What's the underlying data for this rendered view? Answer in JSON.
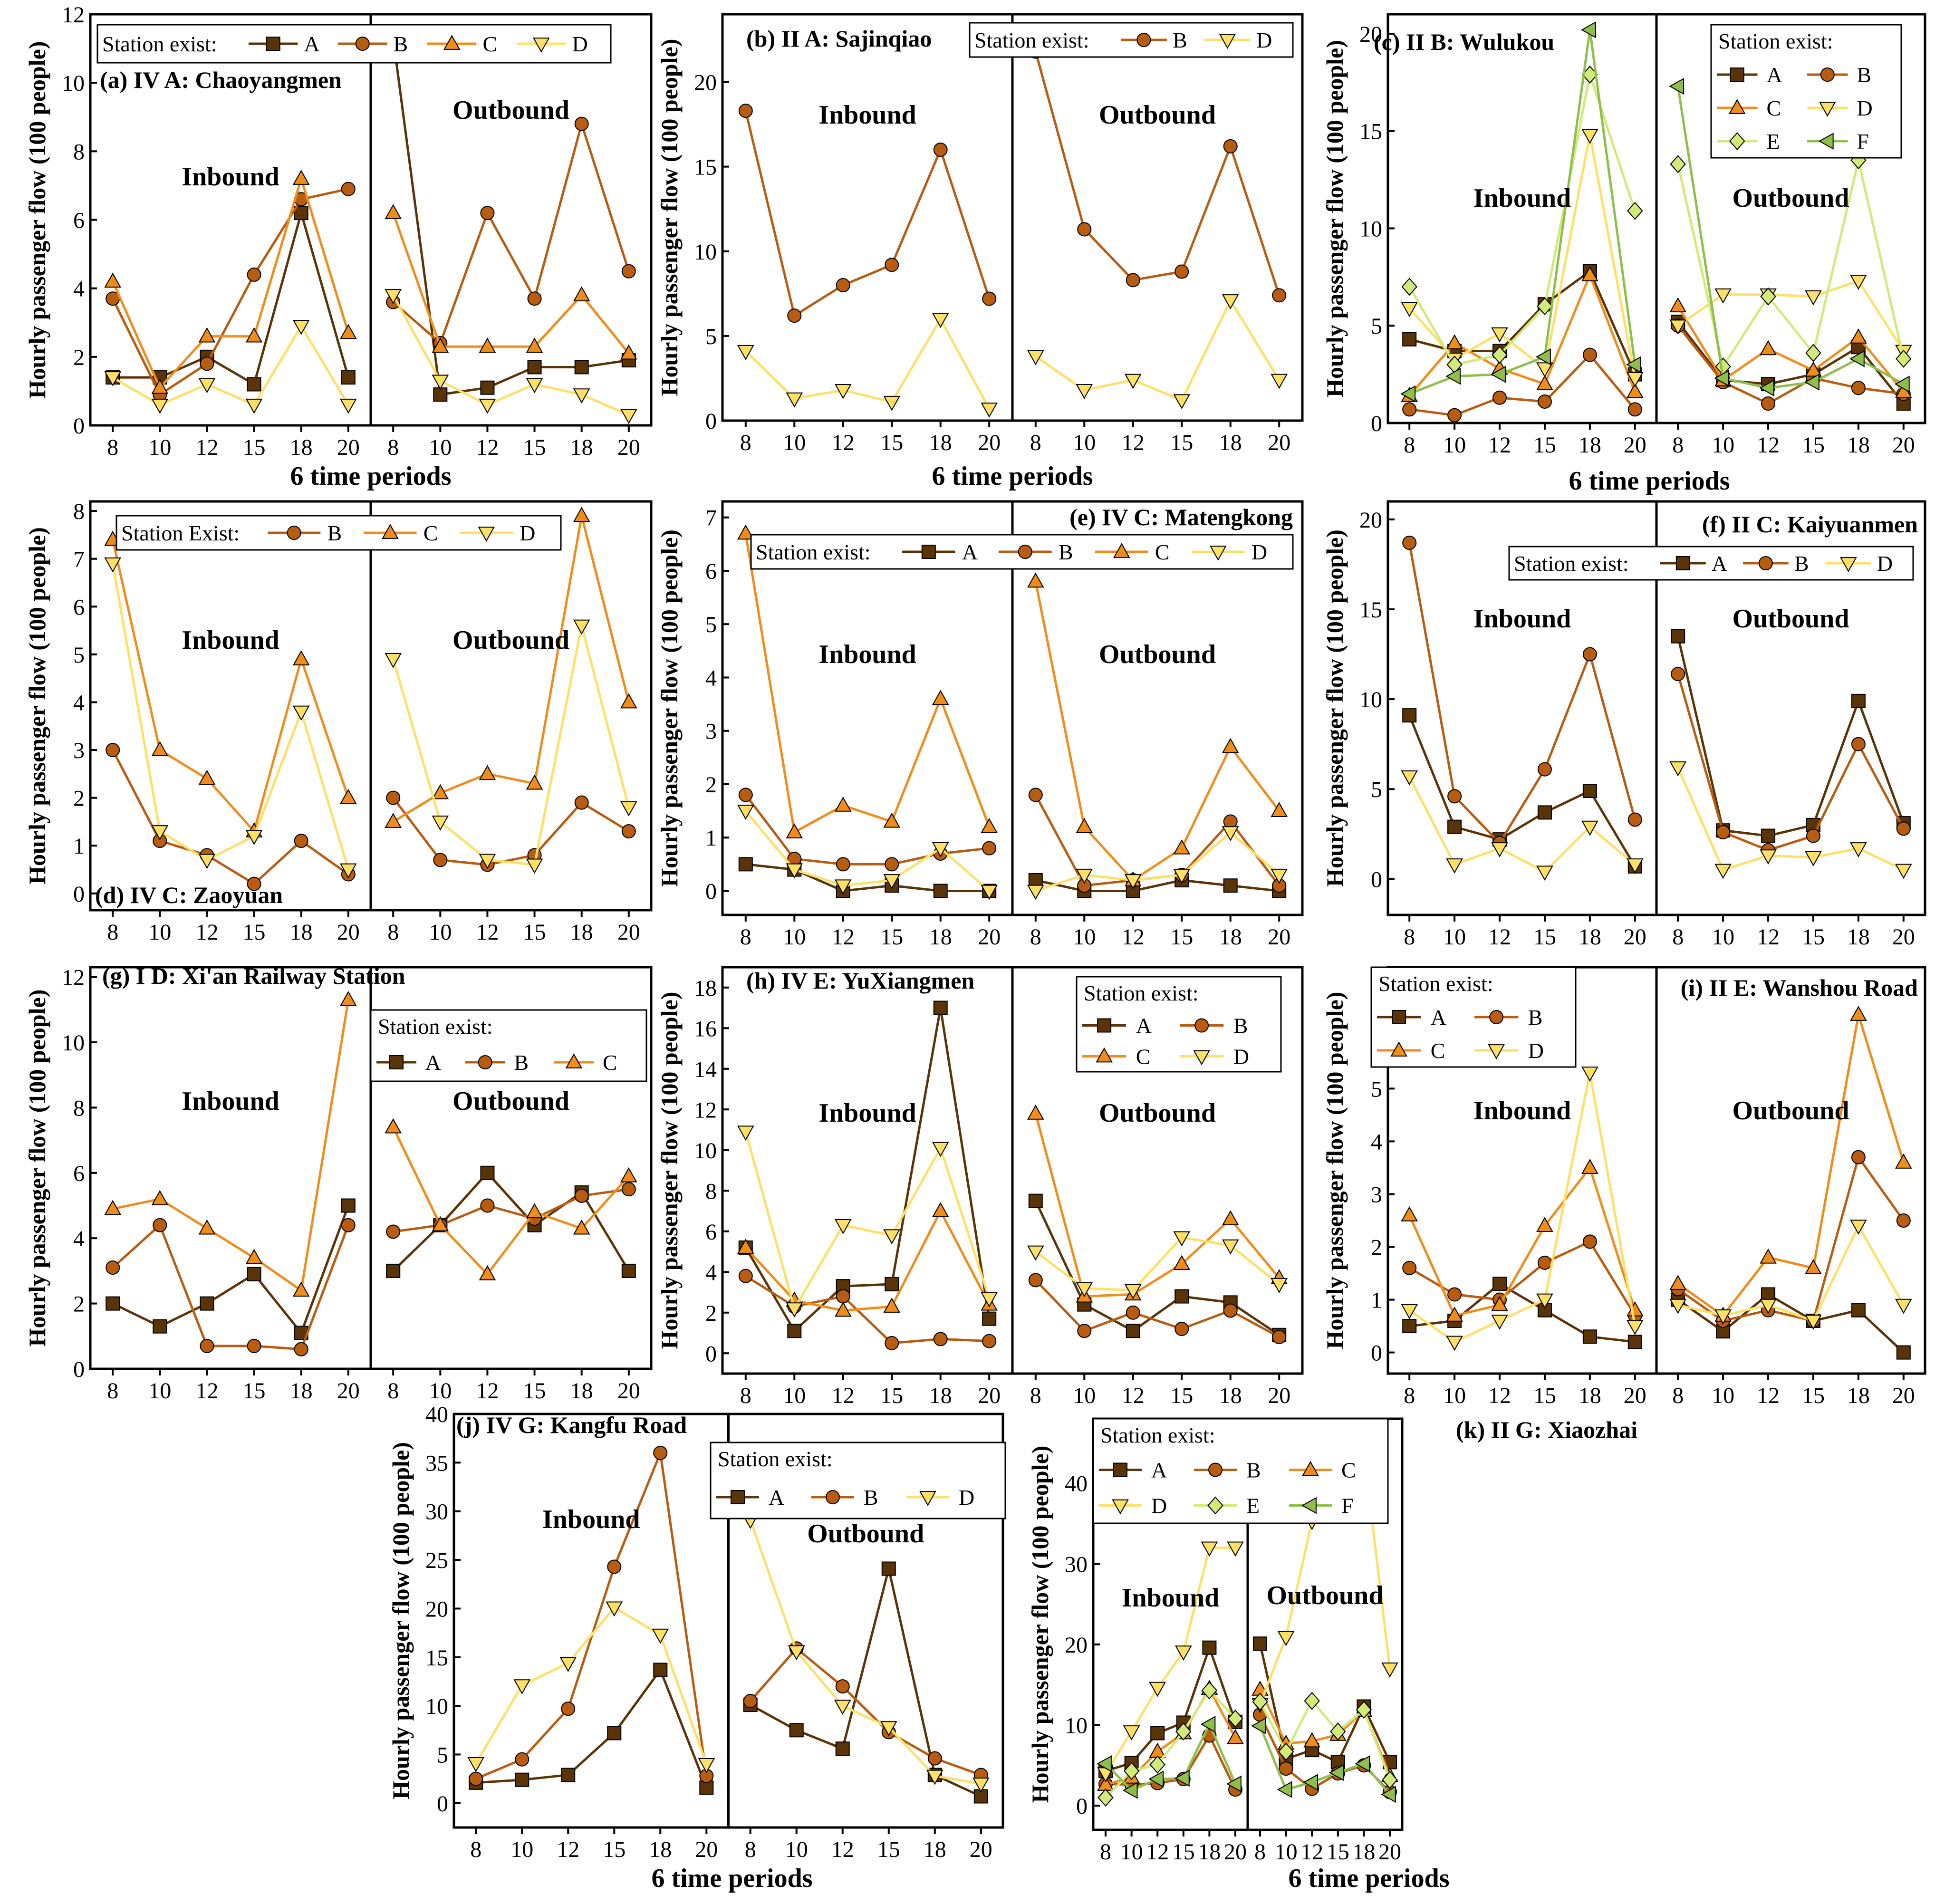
{
  "figure": {
    "xlabel": "6 time periods",
    "ylabel": "Hourly passenger flow (100 people)",
    "inbound_label": "Inbound",
    "outbound_label": "Outbound"
  },
  "colors": {
    "A": "#5a3307",
    "B": "#b85c12",
    "C": "#f08c1a",
    "D": "#ffe066",
    "E": "#d2ea7a",
    "F": "#8fbf4a"
  },
  "markers": {
    "A": "square",
    "B": "circle",
    "C": "triangle-up",
    "D": "triangle-down",
    "E": "diamond",
    "F": "triangle-left"
  },
  "chart_data": [
    {
      "id": "a",
      "type": "line",
      "title": "(a) IV A: Chaoyangmen",
      "legend_title": "Station exist:",
      "categories": [
        "8",
        "10",
        "12",
        "15",
        "18",
        "20"
      ],
      "ylim": [
        0,
        12
      ],
      "yticks": [
        0,
        2,
        4,
        6,
        8,
        10,
        12
      ],
      "series": [
        {
          "name": "A",
          "inbound": [
            1.4,
            1.4,
            2.0,
            1.2,
            6.2,
            1.4
          ],
          "outbound": [
            11.3,
            0.9,
            1.1,
            1.7,
            1.7,
            1.9
          ]
        },
        {
          "name": "B",
          "inbound": [
            3.7,
            0.9,
            1.8,
            4.4,
            6.6,
            6.9
          ],
          "outbound": [
            3.6,
            2.4,
            6.2,
            3.7,
            8.8,
            4.5
          ]
        },
        {
          "name": "C",
          "inbound": [
            4.2,
            1.1,
            2.6,
            2.6,
            7.2,
            2.7
          ],
          "outbound": [
            6.2,
            2.3,
            2.3,
            2.3,
            3.8,
            2.1
          ]
        },
        {
          "name": "D",
          "inbound": [
            1.4,
            0.6,
            1.2,
            0.6,
            2.9,
            0.6
          ],
          "outbound": [
            3.8,
            1.3,
            0.6,
            1.2,
            0.9,
            0.3
          ]
        }
      ]
    },
    {
      "id": "b",
      "type": "line",
      "title": "(b) II A: Sajinqiao",
      "legend_title": "Station exist:",
      "categories": [
        "8",
        "10",
        "12",
        "15",
        "18",
        "20"
      ],
      "ylim": [
        0,
        24
      ],
      "yticks": [
        0,
        5,
        10,
        15,
        20
      ],
      "series": [
        {
          "name": "B",
          "inbound": [
            18.3,
            6.2,
            8.0,
            9.2,
            16.0,
            7.2
          ],
          "outbound": [
            21.8,
            11.3,
            8.3,
            8.8,
            16.2,
            7.4
          ]
        },
        {
          "name": "D",
          "inbound": [
            4.1,
            1.3,
            1.8,
            1.1,
            6.0,
            0.7
          ],
          "outbound": [
            3.8,
            1.8,
            2.4,
            1.2,
            7.1,
            2.4
          ]
        }
      ]
    },
    {
      "id": "c",
      "type": "line",
      "title": "(c) II B: Wulukou",
      "legend_title": "Station exist:",
      "categories": [
        "8",
        "10",
        "12",
        "15",
        "18",
        "20"
      ],
      "ylim": [
        0,
        21
      ],
      "yticks": [
        0,
        5,
        10,
        15,
        20
      ],
      "series": [
        {
          "name": "A",
          "inbound": [
            4.3,
            3.7,
            3.7,
            6.1,
            7.8,
            2.5
          ],
          "outbound": [
            5.2,
            2.2,
            2.0,
            2.5,
            3.9,
            1.0
          ]
        },
        {
          "name": "B",
          "inbound": [
            0.7,
            0.4,
            1.3,
            1.1,
            3.5,
            0.7
          ],
          "outbound": [
            5.0,
            2.1,
            1.0,
            2.3,
            1.8,
            1.5
          ]
        },
        {
          "name": "C",
          "inbound": [
            1.4,
            4.1,
            2.8,
            2.0,
            7.6,
            1.6
          ],
          "outbound": [
            6.0,
            2.2,
            3.8,
            2.7,
            4.4,
            1.6
          ]
        },
        {
          "name": "D",
          "inbound": [
            5.9,
            3.3,
            4.6,
            2.8,
            14.8,
            2.3
          ],
          "outbound": [
            5.0,
            6.6,
            6.6,
            6.5,
            7.3,
            3.7
          ]
        },
        {
          "name": "E",
          "inbound": [
            7.0,
            3.0,
            3.5,
            6.0,
            17.9,
            10.9
          ],
          "outbound": [
            13.3,
            2.9,
            6.5,
            3.6,
            13.5,
            3.3
          ]
        },
        {
          "name": "F",
          "inbound": [
            1.5,
            2.4,
            2.5,
            3.4,
            20.2,
            3.0
          ],
          "outbound": [
            17.3,
            2.3,
            1.8,
            2.1,
            3.3,
            2.0
          ]
        }
      ]
    },
    {
      "id": "d",
      "type": "line",
      "title": "(d) IV C: Zaoyuan",
      "legend_title": "Station Exist:",
      "categories": [
        "8",
        "10",
        "12",
        "15",
        "18",
        "20"
      ],
      "ylim": [
        -0.35,
        8.2
      ],
      "yticks": [
        0,
        1,
        2,
        3,
        4,
        5,
        6,
        7,
        8
      ],
      "series": [
        {
          "name": "B",
          "inbound": [
            3.0,
            1.1,
            0.8,
            0.2,
            1.1,
            0.4
          ],
          "outbound": [
            2.0,
            0.7,
            0.6,
            0.8,
            1.9,
            1.3
          ]
        },
        {
          "name": "C",
          "inbound": [
            7.4,
            3.0,
            2.4,
            1.3,
            4.9,
            2.0
          ],
          "outbound": [
            1.5,
            2.1,
            2.5,
            2.3,
            7.9,
            4.0
          ]
        },
        {
          "name": "D",
          "inbound": [
            6.9,
            1.3,
            0.7,
            1.2,
            3.8,
            0.5
          ],
          "outbound": [
            4.9,
            1.5,
            0.7,
            0.6,
            5.6,
            1.8
          ]
        }
      ]
    },
    {
      "id": "e",
      "type": "line",
      "title": "(e) IV C: Matengkong",
      "legend_title": "Station exist:",
      "categories": [
        "8",
        "10",
        "12",
        "15",
        "18",
        "20"
      ],
      "ylim": [
        -0.45,
        7.3
      ],
      "yticks": [
        0,
        1,
        2,
        3,
        4,
        5,
        6,
        7
      ],
      "series": [
        {
          "name": "A",
          "inbound": [
            0.5,
            0.4,
            0.0,
            0.1,
            0.0,
            0.0
          ],
          "outbound": [
            0.2,
            0.0,
            0.0,
            0.2,
            0.1,
            0.0
          ]
        },
        {
          "name": "B",
          "inbound": [
            1.8,
            0.6,
            0.5,
            0.5,
            0.7,
            0.8
          ],
          "outbound": [
            1.8,
            0.1,
            0.2,
            0.3,
            1.3,
            0.1
          ]
        },
        {
          "name": "C",
          "inbound": [
            6.7,
            1.1,
            1.6,
            1.3,
            3.6,
            1.2
          ],
          "outbound": [
            5.8,
            1.2,
            0.2,
            0.8,
            2.7,
            1.5
          ]
        },
        {
          "name": "D",
          "inbound": [
            1.5,
            0.4,
            0.1,
            0.2,
            0.8,
            0.0
          ],
          "outbound": [
            0.0,
            0.3,
            0.2,
            0.3,
            1.1,
            0.3
          ]
        }
      ]
    },
    {
      "id": "f",
      "type": "line",
      "title": "(f) II C: Kaiyuanmen",
      "legend_title": "Station exist:",
      "categories": [
        "8",
        "10",
        "12",
        "15",
        "18",
        "20"
      ],
      "ylim": [
        -2,
        21
      ],
      "yticks": [
        0,
        5,
        10,
        15,
        20
      ],
      "series": [
        {
          "name": "A",
          "inbound": [
            9.1,
            2.9,
            2.2,
            3.7,
            4.9,
            0.7
          ],
          "outbound": [
            13.5,
            2.7,
            2.4,
            3.0,
            9.9,
            3.1
          ]
        },
        {
          "name": "B",
          "inbound": [
            18.7,
            4.6,
            2.0,
            6.1,
            12.5,
            3.3
          ],
          "outbound": [
            11.4,
            2.6,
            1.6,
            2.4,
            7.5,
            2.8
          ]
        },
        {
          "name": "D",
          "inbound": [
            5.7,
            0.8,
            1.7,
            0.4,
            2.9,
            0.8
          ],
          "outbound": [
            6.2,
            0.5,
            1.3,
            1.2,
            1.7,
            0.5
          ]
        }
      ]
    },
    {
      "id": "g",
      "type": "line",
      "title": "(g) I D: Xi'an Railway Station",
      "legend_title": "Station exist:",
      "categories": [
        "8",
        "10",
        "12",
        "15",
        "18",
        "20"
      ],
      "ylim": [
        0,
        12.3
      ],
      "yticks": [
        0,
        2,
        4,
        6,
        8,
        10,
        12
      ],
      "series": [
        {
          "name": "A",
          "inbound": [
            2.0,
            1.3,
            2.0,
            2.9,
            1.1,
            5.0
          ],
          "outbound": [
            3.0,
            4.4,
            6.0,
            4.4,
            5.4,
            3.0
          ]
        },
        {
          "name": "B",
          "inbound": [
            3.1,
            4.4,
            0.7,
            0.7,
            0.6,
            4.4
          ],
          "outbound": [
            4.2,
            4.4,
            5.0,
            4.6,
            5.3,
            5.5
          ]
        },
        {
          "name": "C",
          "inbound": [
            4.9,
            5.2,
            4.3,
            3.4,
            2.4,
            11.3
          ],
          "outbound": [
            7.4,
            4.4,
            2.9,
            4.8,
            4.3,
            5.9
          ]
        }
      ]
    },
    {
      "id": "h",
      "type": "line",
      "title": "(h) IV E: YuXiangmen",
      "legend_title": "Station exist:",
      "categories": [
        "8",
        "10",
        "12",
        "15",
        "18",
        "20"
      ],
      "ylim": [
        -1,
        19
      ],
      "yticks": [
        0,
        2,
        4,
        6,
        8,
        10,
        12,
        14,
        16,
        18
      ],
      "series": [
        {
          "name": "A",
          "inbound": [
            5.2,
            1.1,
            3.3,
            3.4,
            17.0,
            1.7
          ],
          "outbound": [
            7.5,
            2.4,
            1.1,
            2.8,
            2.5,
            0.9
          ]
        },
        {
          "name": "B",
          "inbound": [
            3.8,
            2.3,
            2.8,
            0.5,
            0.7,
            0.6
          ],
          "outbound": [
            3.6,
            1.1,
            2.0,
            1.2,
            2.1,
            0.8
          ]
        },
        {
          "name": "C",
          "inbound": [
            5.2,
            2.6,
            2.1,
            2.3,
            7.0,
            2.4
          ],
          "outbound": [
            11.8,
            2.8,
            2.9,
            4.4,
            6.6,
            3.7
          ]
        },
        {
          "name": "D",
          "inbound": [
            10.9,
            2.2,
            6.3,
            5.8,
            10.1,
            2.7
          ],
          "outbound": [
            5.0,
            3.2,
            3.1,
            5.7,
            5.3,
            3.4
          ]
        }
      ]
    },
    {
      "id": "i",
      "type": "line",
      "title": "(i) II E: Wanshou Road",
      "legend_title": "Station exist:",
      "categories": [
        "8",
        "10",
        "12",
        "15",
        "18",
        "20"
      ],
      "ylim": [
        -0.4,
        7.3
      ],
      "yticks": [
        0,
        1,
        2,
        3,
        4,
        5,
        6,
        7
      ],
      "series": [
        {
          "name": "A",
          "inbound": [
            0.5,
            0.6,
            1.3,
            0.8,
            0.3,
            0.2
          ],
          "outbound": [
            1.0,
            0.4,
            1.1,
            0.6,
            0.8,
            0.0
          ]
        },
        {
          "name": "B",
          "inbound": [
            1.6,
            1.1,
            1.0,
            1.7,
            2.1,
            0.7
          ],
          "outbound": [
            1.2,
            0.6,
            0.8,
            0.6,
            3.7,
            2.5
          ]
        },
        {
          "name": "C",
          "inbound": [
            2.6,
            0.7,
            0.9,
            2.4,
            3.5,
            0.8
          ],
          "outbound": [
            1.3,
            0.7,
            1.8,
            1.6,
            6.4,
            3.6
          ]
        },
        {
          "name": "D",
          "inbound": [
            0.8,
            0.2,
            0.6,
            1.0,
            5.3,
            0.5
          ],
          "outbound": [
            0.9,
            0.7,
            0.9,
            0.6,
            2.4,
            0.9
          ]
        }
      ]
    },
    {
      "id": "j",
      "type": "line",
      "title": "(j) IV G: Kangfu Road",
      "legend_title": "Station exist:",
      "categories": [
        "8",
        "10",
        "12",
        "15",
        "18",
        "20"
      ],
      "ylim": [
        -2.5,
        40
      ],
      "yticks": [
        0,
        5,
        10,
        15,
        20,
        25,
        30,
        35,
        40
      ],
      "series": [
        {
          "name": "A",
          "inbound": [
            2.1,
            2.4,
            2.9,
            7.2,
            13.7,
            1.6
          ],
          "outbound": [
            10.1,
            7.5,
            5.6,
            24.1,
            2.9,
            0.7
          ]
        },
        {
          "name": "B",
          "inbound": [
            2.5,
            4.5,
            9.7,
            24.3,
            36.0,
            2.8
          ],
          "outbound": [
            10.5,
            15.9,
            12.0,
            7.3,
            4.6,
            2.9
          ]
        },
        {
          "name": "D",
          "inbound": [
            4.1,
            12.1,
            14.4,
            20.1,
            17.3,
            4.0
          ],
          "outbound": [
            29.1,
            15.6,
            10.0,
            7.8,
            2.8,
            2.0
          ]
        }
      ]
    },
    {
      "id": "k",
      "type": "line",
      "title": "(k) II G: Xiaozhai",
      "legend_title": "Station exist:",
      "categories": [
        "8",
        "10",
        "12",
        "15",
        "18",
        "20"
      ],
      "ylim": [
        -3,
        48
      ],
      "yticks": [
        0,
        10,
        20,
        30,
        40
      ],
      "series": [
        {
          "name": "A",
          "inbound": [
            4.3,
            5.3,
            9.0,
            10.3,
            19.6,
            10.4
          ],
          "outbound": [
            20.1,
            5.8,
            6.9,
            5.4,
            12.3,
            5.4
          ]
        },
        {
          "name": "B",
          "inbound": [
            2.7,
            2.6,
            2.8,
            3.3,
            8.7,
            2.0
          ],
          "outbound": [
            11.3,
            4.6,
            2.1,
            4.0,
            5.0,
            1.7
          ]
        },
        {
          "name": "C",
          "inbound": [
            2.6,
            3.5,
            6.7,
            9.0,
            14.5,
            8.4
          ],
          "outbound": [
            14.4,
            7.7,
            8.0,
            8.8,
            11.8,
            3.7
          ]
        },
        {
          "name": "D",
          "inbound": [
            4.0,
            9.2,
            14.6,
            19.1,
            32.0,
            32.0
          ],
          "outbound": [
            12.6,
            20.9,
            35.3,
            39.8,
            43.9,
            17.0
          ]
        },
        {
          "name": "E",
          "inbound": [
            1.0,
            4.3,
            5.1,
            9.2,
            14.3,
            10.8
          ],
          "outbound": [
            12.9,
            6.7,
            13.0,
            9.2,
            11.9,
            3.2
          ]
        },
        {
          "name": "F",
          "inbound": [
            5.2,
            1.9,
            3.3,
            3.4,
            10.1,
            2.7
          ],
          "outbound": [
            9.9,
            2.0,
            2.9,
            4.1,
            5.2,
            1.4
          ]
        }
      ]
    }
  ]
}
